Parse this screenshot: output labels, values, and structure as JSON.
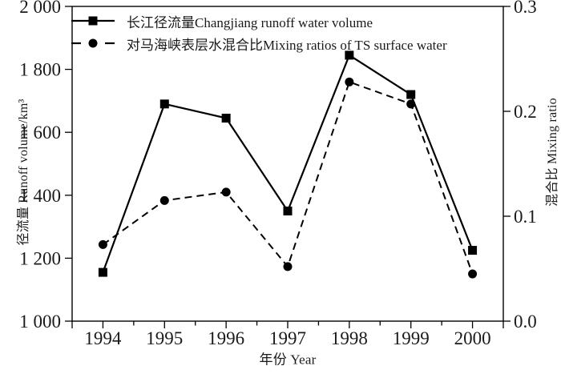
{
  "chart_data": {
    "type": "line",
    "x": [
      1994,
      1995,
      1996,
      1997,
      1998,
      1999,
      2000
    ],
    "series": [
      {
        "name": "长江径流量Changjiang runoff water volume",
        "axis": "left",
        "line_style": "solid",
        "marker": "square",
        "color": "#000000",
        "values": [
          1155,
          1690,
          1645,
          1350,
          1845,
          1720,
          1225
        ]
      },
      {
        "name": "对马海峡表层水混合比Mixing ratios of TS surface water",
        "axis": "right",
        "line_style": "dashed",
        "marker": "circle",
        "color": "#000000",
        "values": [
          0.073,
          0.115,
          0.123,
          0.052,
          0.228,
          0.207,
          0.045
        ]
      }
    ],
    "xlabel": "年份 Year",
    "ylabel_left": "径流量 Runoff volume/km³",
    "ylabel_right": "混合比 Mixing ratio",
    "xlim": [
      1993.5,
      2000.5
    ],
    "ylim_left": [
      1000,
      2000
    ],
    "ylim_right": [
      0.0,
      0.3
    ],
    "xticks": {
      "values": [
        1994,
        1995,
        1996,
        1997,
        1998,
        1999,
        2000
      ],
      "labels": [
        "1994",
        "1995",
        "1996",
        "1997",
        "1998",
        "1999",
        "2000"
      ],
      "minor_step": 0.5
    },
    "yticks_left": {
      "values": [
        1000,
        1200,
        1400,
        1600,
        1800,
        2000
      ],
      "labels": [
        "1 000",
        "1 200",
        "1 400",
        "1 600",
        "1 800",
        "2 000"
      ]
    },
    "yticks_right": {
      "values": [
        0.0,
        0.1,
        0.2,
        0.3
      ],
      "labels": [
        "0.0",
        "0.1",
        "0.2",
        "0.3"
      ]
    },
    "grid": false,
    "frame": "box",
    "tick_direction": "out",
    "legend_position": "top-left",
    "line_color": "#000000"
  }
}
